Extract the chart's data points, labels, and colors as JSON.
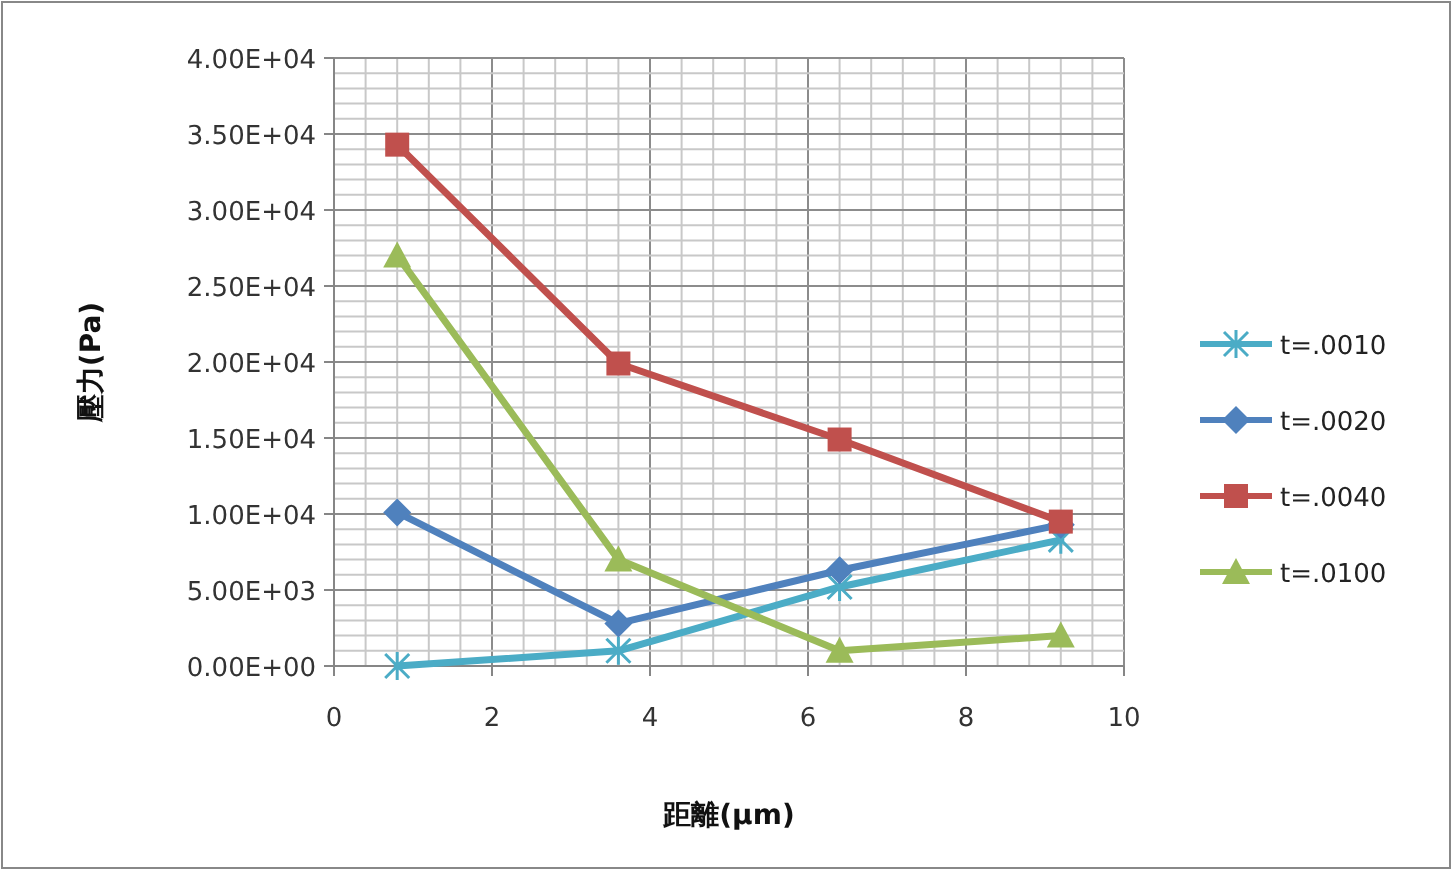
{
  "chart_data": {
    "type": "line",
    "xlabel": "距離(μm)",
    "ylabel": "壓力(Pa)",
    "x": [
      0.8,
      3.6,
      6.4,
      9.2
    ],
    "series": [
      {
        "name": "t=.0010",
        "color": "#4bacc6",
        "marker": "cross",
        "values": [
          0,
          1000,
          5200,
          8300
        ]
      },
      {
        "name": "t=.0020",
        "color": "#4f81bd",
        "marker": "diamond",
        "values": [
          10100,
          2800,
          6300,
          9300
        ]
      },
      {
        "name": "t=.0040",
        "color": "#c0504d",
        "marker": "square",
        "values": [
          34300,
          19900,
          14900,
          9500
        ]
      },
      {
        "name": "t=.0100",
        "color": "#9bbb59",
        "marker": "triangle",
        "values": [
          27000,
          7000,
          1000,
          2000
        ]
      }
    ],
    "xlim": [
      0,
      10
    ],
    "xticks": [
      0,
      2,
      4,
      6,
      8,
      10
    ],
    "ylim": [
      0,
      40000
    ],
    "yticks": [
      {
        "value": 0,
        "label": "0.00E+00"
      },
      {
        "value": 5000,
        "label": "5.00E+03"
      },
      {
        "value": 10000,
        "label": "1.00E+04"
      },
      {
        "value": 15000,
        "label": "1.50E+04"
      },
      {
        "value": 20000,
        "label": "2.00E+04"
      },
      {
        "value": 25000,
        "label": "2.50E+04"
      },
      {
        "value": 30000,
        "label": "3.00E+04"
      },
      {
        "value": 35000,
        "label": "3.50E+04"
      },
      {
        "value": 40000,
        "label": "4.00E+04"
      }
    ],
    "grid": true,
    "legend": "right",
    "line_style": "solid"
  }
}
